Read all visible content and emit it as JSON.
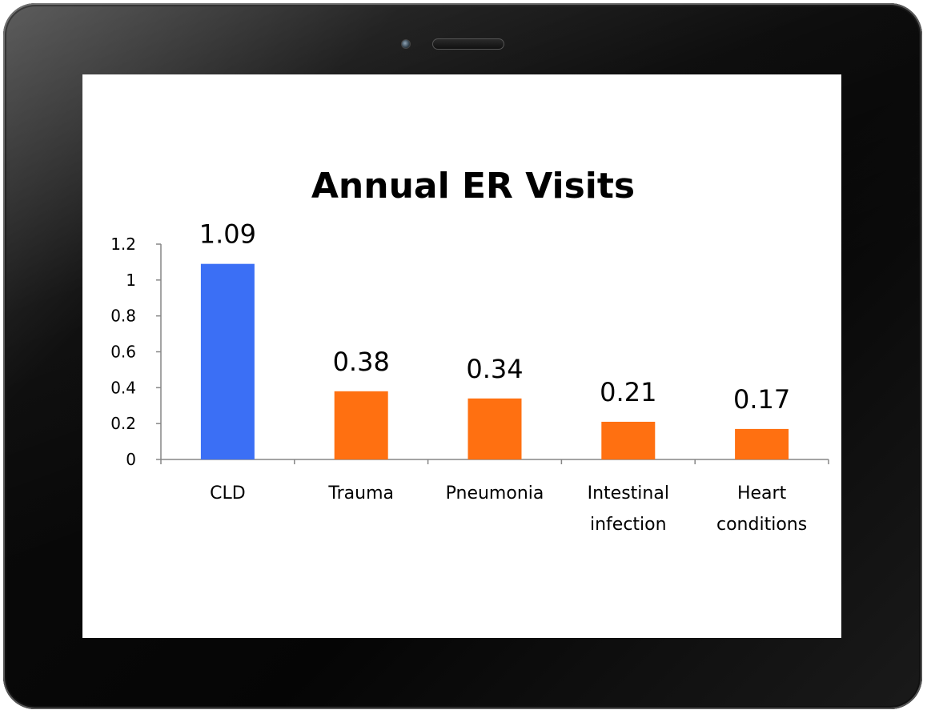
{
  "chart_data": {
    "type": "bar",
    "title": "Annual ER Visits",
    "xlabel": "",
    "ylabel": "",
    "categories": [
      [
        "CLD"
      ],
      [
        "Trauma"
      ],
      [
        "Pneumonia"
      ],
      [
        "Intestinal",
        "infection"
      ],
      [
        "Heart",
        "conditions"
      ]
    ],
    "values": [
      1.09,
      0.38,
      0.34,
      0.21,
      0.17
    ],
    "data_labels": [
      "1.09",
      "0.38",
      "0.34",
      "0.21",
      "0.17"
    ],
    "yticks": [
      "0",
      "0.2",
      "0.4",
      "0.6",
      "0.8",
      "1",
      "1.2"
    ],
    "ylim": [
      0,
      1.2
    ],
    "grid": false,
    "legend": "none",
    "bar_colors": [
      "#3b6ff5",
      "#ff7011",
      "#ff7011",
      "#ff7011",
      "#ff7011"
    ],
    "axis_color": "#868686"
  },
  "device": {
    "frame_color": "#050505",
    "screen_color": "#ffffff"
  }
}
